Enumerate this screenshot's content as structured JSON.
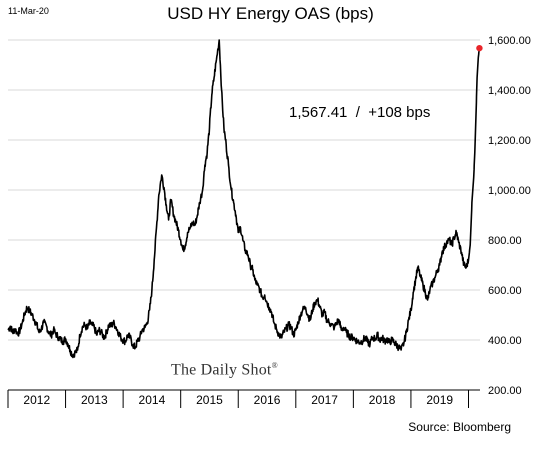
{
  "date_stamp": "11-Mar-20",
  "source": "Source: Bloomberg",
  "watermark": "The Daily Shot",
  "watermark_mark": "®",
  "annotation": "1,567.41  /  +108 bps",
  "colors": {
    "line": "#000000",
    "end_marker": "#e8252a",
    "grid": "#d9d9d9",
    "axis": "#000000"
  },
  "chart_data": {
    "type": "line",
    "title": "USD HY Energy OAS (bps)",
    "xlabel": "",
    "ylabel": "",
    "ylim": [
      200,
      1600
    ],
    "xlim": [
      2012.0,
      2020.2
    ],
    "grid": true,
    "y_axis_side": "right",
    "yticks": [
      200,
      400,
      600,
      800,
      1000,
      1200,
      1400,
      1600
    ],
    "ytick_labels": [
      "200.00",
      "400.00",
      "600.00",
      "800.00",
      "1,000.00",
      "1,200.00",
      "1,400.00",
      "1,600.00"
    ],
    "year_labels": [
      "2012",
      "2013",
      "2014",
      "2015",
      "2016",
      "2017",
      "2018",
      "2019"
    ],
    "last_value": 1567.41,
    "series": [
      {
        "x": [
          2012.0,
          2012.04,
          2012.08,
          2012.12,
          2012.17,
          2012.21,
          2012.25,
          2012.29,
          2012.33,
          2012.38,
          2012.42,
          2012.46,
          2012.5,
          2012.54,
          2012.58,
          2012.62,
          2012.67,
          2012.71,
          2012.75,
          2012.79,
          2012.83,
          2012.88,
          2012.92,
          2012.96,
          2013.0,
          2013.04,
          2013.08,
          2013.12,
          2013.17,
          2013.21,
          2013.25,
          2013.29,
          2013.33,
          2013.38,
          2013.42,
          2013.46,
          2013.5,
          2013.54,
          2013.58,
          2013.62,
          2013.67,
          2013.71,
          2013.75,
          2013.79,
          2013.83,
          2013.88,
          2013.92,
          2013.96,
          2014.0,
          2014.04,
          2014.08,
          2014.12,
          2014.17,
          2014.21,
          2014.25,
          2014.29,
          2014.33,
          2014.38,
          2014.42,
          2014.46,
          2014.5,
          2014.54,
          2014.58,
          2014.62,
          2014.67,
          2014.71,
          2014.75,
          2014.79,
          2014.83,
          2014.88,
          2014.92,
          2014.96,
          2015.0,
          2015.04,
          2015.08,
          2015.12,
          2015.17,
          2015.21,
          2015.25,
          2015.29,
          2015.33,
          2015.38,
          2015.42,
          2015.46,
          2015.5,
          2015.54,
          2015.58,
          2015.62,
          2015.67,
          2015.71,
          2015.75,
          2015.79,
          2015.83,
          2015.88,
          2015.92,
          2015.96,
          2016.0,
          2016.04,
          2016.08,
          2016.12,
          2016.17,
          2016.21,
          2016.25,
          2016.29,
          2016.33,
          2016.38,
          2016.42,
          2016.46,
          2016.5,
          2016.54,
          2016.58,
          2016.62,
          2016.67,
          2016.71,
          2016.75,
          2016.79,
          2016.83,
          2016.88,
          2016.92,
          2016.96,
          2017.0,
          2017.04,
          2017.08,
          2017.12,
          2017.17,
          2017.21,
          2017.25,
          2017.29,
          2017.33,
          2017.38,
          2017.42,
          2017.46,
          2017.5,
          2017.54,
          2017.58,
          2017.62,
          2017.67,
          2017.71,
          2017.75,
          2017.79,
          2017.83,
          2017.88,
          2017.92,
          2017.96,
          2018.0,
          2018.04,
          2018.08,
          2018.12,
          2018.17,
          2018.21,
          2018.25,
          2018.29,
          2018.33,
          2018.38,
          2018.42,
          2018.46,
          2018.5,
          2018.54,
          2018.58,
          2018.62,
          2018.67,
          2018.71,
          2018.75,
          2018.79,
          2018.83,
          2018.88,
          2018.92,
          2018.96,
          2019.0,
          2019.04,
          2019.08,
          2019.12,
          2019.17,
          2019.21,
          2019.25,
          2019.29,
          2019.33,
          2019.38,
          2019.42,
          2019.46,
          2019.5,
          2019.54,
          2019.58,
          2019.62,
          2019.67,
          2019.71,
          2019.75,
          2019.79,
          2019.83,
          2019.88,
          2019.92,
          2019.96,
          2020.0,
          2020.03,
          2020.06,
          2020.09,
          2020.11,
          2020.13,
          2020.15,
          2020.17,
          2020.19
        ],
        "y": [
          440,
          455,
          430,
          445,
          425,
          440,
          470,
          505,
          530,
          515,
          500,
          480,
          460,
          430,
          445,
          470,
          455,
          430,
          420,
          440,
          425,
          410,
          400,
          395,
          405,
          385,
          360,
          340,
          350,
          360,
          420,
          450,
          460,
          445,
          470,
          460,
          450,
          420,
          440,
          430,
          410,
          430,
          460,
          455,
          470,
          450,
          430,
          410,
          400,
          395,
          420,
          410,
          380,
          370,
          395,
          410,
          440,
          450,
          470,
          520,
          600,
          720,
          850,
          980,
          1060,
          1010,
          940,
          880,
          960,
          900,
          870,
          840,
          800,
          760,
          780,
          830,
          850,
          870,
          860,
          900,
          950,
          1000,
          1100,
          1150,
          1250,
          1380,
          1450,
          1520,
          1600,
          1400,
          1250,
          1180,
          1100,
          1000,
          950,
          900,
          830,
          850,
          800,
          760,
          740,
          700,
          680,
          640,
          620,
          600,
          570,
          580,
          550,
          530,
          510,
          470,
          440,
          420,
          410,
          430,
          445,
          460,
          450,
          420,
          440,
          470,
          500,
          520,
          530,
          500,
          480,
          520,
          550,
          560,
          530,
          500,
          510,
          480,
          470,
          460,
          450,
          470,
          480,
          440,
          450,
          430,
          420,
          410,
          410,
          400,
          395,
          390,
          400,
          410,
          390,
          385,
          410,
          405,
          420,
          400,
          410,
          395,
          405,
          390,
          400,
          390,
          380,
          370,
          360,
          390,
          430,
          480,
          520,
          590,
          640,
          690,
          650,
          620,
          590,
          560,
          600,
          630,
          650,
          680,
          700,
          750,
          770,
          790,
          800,
          780,
          810,
          830,
          790,
          750,
          700,
          690,
          720,
          780,
          950,
          1050,
          1150,
          1300,
          1450,
          1530,
          1567.41
        ]
      }
    ]
  }
}
